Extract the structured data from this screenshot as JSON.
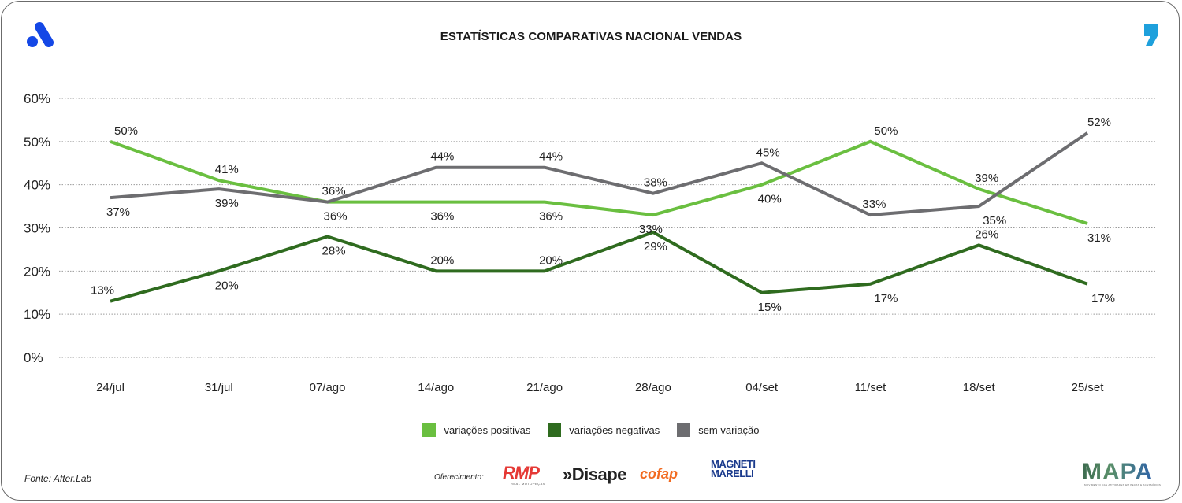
{
  "title": "ESTATÍSTICAS COMPARATIVAS NACIONAL VENDAS",
  "logos": {
    "left": "afterlab-logo-icon",
    "right": "comma-logo-icon"
  },
  "chart_data": {
    "type": "line",
    "title": "ESTATÍSTICAS COMPARATIVAS NACIONAL VENDAS",
    "xlabel": "",
    "ylabel": "",
    "categories": [
      "24/jul",
      "31/jul",
      "07/ago",
      "14/ago",
      "21/ago",
      "28/ago",
      "04/set",
      "11/set",
      "18/set",
      "25/set"
    ],
    "ylim": [
      0,
      60
    ],
    "yticks": [
      0,
      10,
      20,
      30,
      40,
      50,
      60
    ],
    "ytick_labels": [
      "0%",
      "10%",
      "20%",
      "30%",
      "40%",
      "50%",
      "60%"
    ],
    "grid": true,
    "legend_position": "bottom-center",
    "series": [
      {
        "name": "variações positivas",
        "color": "#6abf40",
        "values": [
          50,
          41,
          36,
          36,
          36,
          33,
          40,
          50,
          39,
          31
        ],
        "labels": [
          "50%",
          "41%",
          "36%",
          "36%",
          "36%",
          "33%",
          "40%",
          "50%",
          "39%",
          "31%"
        ]
      },
      {
        "name": "variações negativas",
        "color": "#2f6b1f",
        "values": [
          13,
          20,
          28,
          20,
          20,
          29,
          15,
          17,
          26,
          17
        ],
        "labels": [
          "13%",
          "20%",
          "28%",
          "20%",
          "20%",
          "29%",
          "15%",
          "17%",
          "26%",
          "17%"
        ]
      },
      {
        "name": "sem variação",
        "color": "#6d6d70",
        "values": [
          37,
          39,
          36,
          44,
          44,
          38,
          45,
          33,
          35,
          52
        ],
        "labels": [
          "37%",
          "39%",
          "36%",
          "44%",
          "44%",
          "38%",
          "45%",
          "33%",
          "35%",
          "52%"
        ]
      }
    ]
  },
  "footer": {
    "source": "Fonte: After.Lab",
    "sponsor_label": "Oferecimento:",
    "sponsors": [
      "RMP",
      "»Disape",
      "cofap",
      "MAGNETI MARELLI"
    ],
    "rmp_sub": "REAL MOTOPEÇAS",
    "brand": "MAPA",
    "brand_sub": "MOVIMENTO DAS ATIVIDADES EM PEÇAS E ACESSÓRIOS"
  }
}
